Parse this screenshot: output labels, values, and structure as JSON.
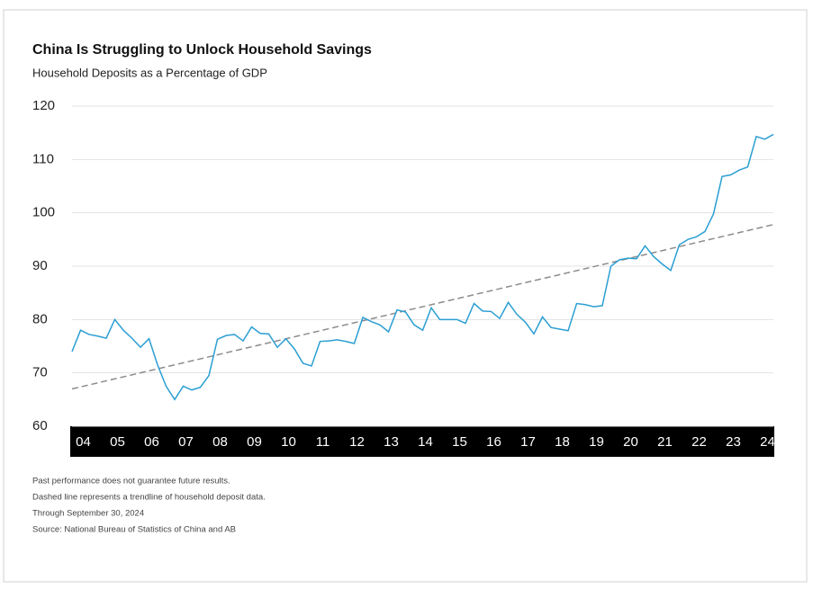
{
  "chart_data": {
    "type": "line",
    "title": "China Is Struggling to Unlock Household Savings",
    "subtitle": "Household Deposits as a Percentage of GDP",
    "categories": [
      null,
      "04",
      null,
      null,
      null,
      "05",
      null,
      null,
      null,
      "06",
      null,
      null,
      null,
      "07",
      null,
      null,
      null,
      "08",
      null,
      null,
      null,
      "09",
      null,
      null,
      null,
      "10",
      null,
      null,
      null,
      "11",
      null,
      null,
      null,
      "12",
      null,
      null,
      null,
      "13",
      null,
      null,
      null,
      "14",
      null,
      null,
      null,
      "15",
      null,
      null,
      null,
      "16",
      null,
      null,
      null,
      "17",
      null,
      null,
      null,
      "18",
      null,
      null,
      null,
      "19",
      null,
      null,
      null,
      "20",
      null,
      null,
      null,
      "21",
      null,
      null,
      null,
      "22",
      null,
      null,
      null,
      "23",
      null,
      null,
      null,
      "24",
      null
    ],
    "series": [
      {
        "color": "#2b9fd3",
        "values": [
          74,
          78,
          77.2,
          76.9,
          76.5,
          80,
          78,
          76.5,
          74.8,
          76.4,
          71.5,
          67.5,
          65,
          67.5,
          66.8,
          67.3,
          69.5,
          76.3,
          77,
          77.2,
          76,
          78.6,
          77.4,
          77.3,
          74.8,
          76.4,
          74.5,
          71.8,
          71.3,
          75.9,
          76,
          76.2,
          75.9,
          75.5,
          80.4,
          79.6,
          79,
          77.7,
          81.8,
          81.4,
          79,
          78,
          82.2,
          80,
          80,
          80,
          79.3,
          83,
          81.6,
          81.5,
          80.2,
          83.2,
          81,
          79.5,
          77.3,
          80.5,
          78.5,
          78.2,
          77.9,
          83,
          82.8,
          82.4,
          82.6,
          90,
          91.2,
          91.5,
          91.4,
          93.8,
          91.8,
          90.4,
          89.2,
          94,
          95,
          95.5,
          96.5,
          99.8,
          106.8,
          107.1,
          108,
          108.6,
          114.3,
          113.8,
          114.7
        ]
      }
    ],
    "trend": {
      "color": "#8c8c8c",
      "values": [
        67,
        97.8
      ]
    },
    "ylim": [
      60,
      120
    ],
    "yticks": [
      60,
      70,
      80,
      90,
      100,
      110,
      120
    ],
    "grid": true,
    "notes": [
      "Past performance does not guarantee future results.",
      "Dashed line represents a trendline of household deposit data.",
      "Through September 30, 2024",
      "Source: National Bureau of Statistics of China and AB"
    ]
  }
}
